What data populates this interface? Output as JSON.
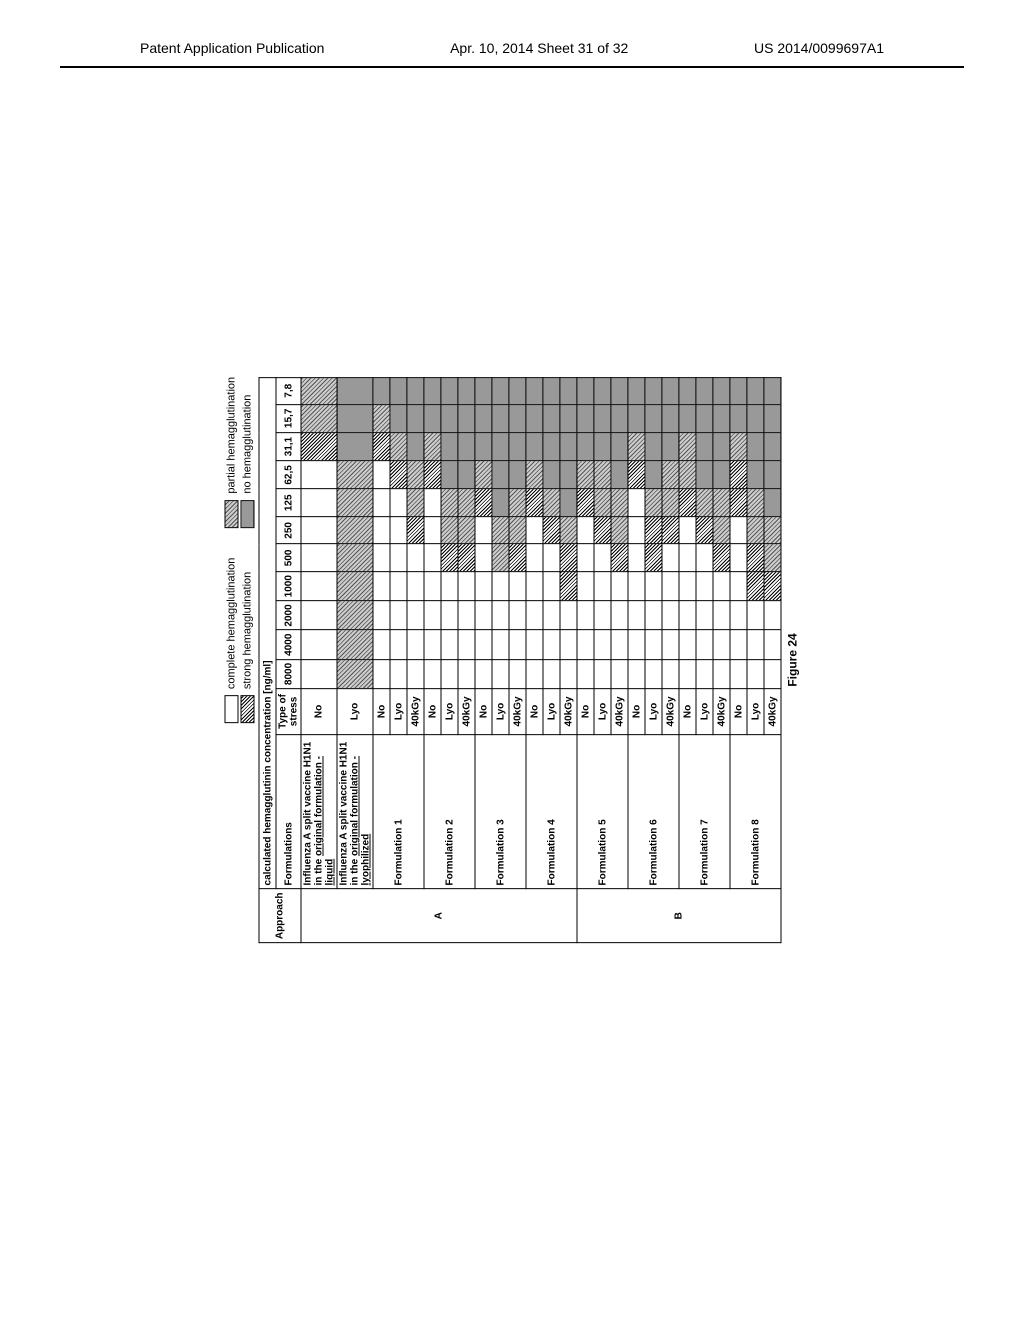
{
  "header": {
    "left": "Patent Application Publication",
    "center": "Apr. 10, 2014  Sheet 31 of 32",
    "right": "US 2014/0099697A1"
  },
  "legend": {
    "complete": "complete hemagglutination",
    "strong": "strong hemagglutination",
    "partial": "partial hemagglutination",
    "none": "no hemagglutination"
  },
  "patterns": {
    "complete": {
      "bg": "#ffffff",
      "css": ""
    },
    "strong": {
      "bg": "repeating-linear-gradient(45deg,#000 0 1px,#fff 1px 2.5px)"
    },
    "partial": {
      "bg": "repeating-linear-gradient(45deg,#555 0 1px,#ccc 1px 3px)"
    },
    "none": {
      "bg": "repeating-linear-gradient(0deg,#777 0 1px,#bbb 1px 2px)"
    }
  },
  "table": {
    "title": "calculated hemagglutinin concentration [ng/ml]",
    "col_approach": "Approach",
    "col_formulations": "Formulations",
    "col_stress": "Type of stress",
    "concentrations": [
      "8000",
      "4000",
      "2000",
      "1000",
      "500",
      "250",
      "125",
      "62,5",
      "31,1",
      "15,7",
      "7,8"
    ],
    "groups": [
      {
        "approach": "A",
        "rows": [
          {
            "label_html": "Influenza A split vaccine H1N1 in the <span class='under'>original formulation - liquid</span>",
            "stress": "No",
            "cells": [
              "complete",
              "complete",
              "complete",
              "complete",
              "complete",
              "complete",
              "complete",
              "complete",
              "strong",
              "partial",
              "partial"
            ]
          },
          {
            "label_html": "Influenza A split vaccine H1N1 in the <span class='under'>original formulation - lyophilized</span>",
            "stress": "Lyo",
            "cells": [
              "partial",
              "partial",
              "partial",
              "partial",
              "partial",
              "partial",
              "partial",
              "partial",
              "none",
              "none",
              "none"
            ]
          },
          {
            "label": "Formulation 1",
            "rowspan": 3,
            "stress": "No",
            "cells": [
              "complete",
              "complete",
              "complete",
              "complete",
              "complete",
              "complete",
              "complete",
              "complete",
              "strong",
              "partial",
              "none"
            ]
          },
          {
            "stress": "Lyo",
            "cells": [
              "complete",
              "complete",
              "complete",
              "complete",
              "complete",
              "complete",
              "complete",
              "strong",
              "partial",
              "none",
              "none"
            ]
          },
          {
            "stress": "40kGy",
            "cells": [
              "complete",
              "complete",
              "complete",
              "complete",
              "complete",
              "strong",
              "partial",
              "partial",
              "none",
              "none",
              "none"
            ]
          },
          {
            "label": "Formulation 2",
            "rowspan": 3,
            "stress": "No",
            "cells": [
              "complete",
              "complete",
              "complete",
              "complete",
              "complete",
              "complete",
              "complete",
              "strong",
              "partial",
              "none",
              "none"
            ]
          },
          {
            "stress": "Lyo",
            "cells": [
              "complete",
              "complete",
              "complete",
              "complete",
              "strong",
              "partial",
              "partial",
              "none",
              "none",
              "none",
              "none"
            ]
          },
          {
            "stress": "40kGy",
            "cells": [
              "complete",
              "complete",
              "complete",
              "complete",
              "strong",
              "partial",
              "partial",
              "none",
              "none",
              "none",
              "none"
            ]
          },
          {
            "label": "Formulation 3",
            "rowspan": 3,
            "stress": "No",
            "cells": [
              "complete",
              "complete",
              "complete",
              "complete",
              "complete",
              "complete",
              "strong",
              "partial",
              "none",
              "none",
              "none"
            ]
          },
          {
            "stress": "Lyo",
            "cells": [
              "complete",
              "complete",
              "complete",
              "complete",
              "partial",
              "partial",
              "none",
              "none",
              "none",
              "none",
              "none"
            ]
          },
          {
            "stress": "40kGy",
            "cells": [
              "complete",
              "complete",
              "complete",
              "complete",
              "strong",
              "partial",
              "partial",
              "none",
              "none",
              "none",
              "none"
            ]
          },
          {
            "label": "Formulation 4",
            "rowspan": 3,
            "stress": "No",
            "cells": [
              "complete",
              "complete",
              "complete",
              "complete",
              "complete",
              "complete",
              "strong",
              "partial",
              "none",
              "none",
              "none"
            ]
          },
          {
            "stress": "Lyo",
            "cells": [
              "complete",
              "complete",
              "complete",
              "complete",
              "complete",
              "strong",
              "partial",
              "none",
              "none",
              "none",
              "none"
            ]
          },
          {
            "stress": "40kGy",
            "cells": [
              "complete",
              "complete",
              "complete",
              "strong",
              "strong",
              "partial",
              "none",
              "none",
              "none",
              "none",
              "none"
            ]
          }
        ]
      },
      {
        "approach": "B",
        "rows": [
          {
            "label": "Formulation 5",
            "rowspan": 3,
            "stress": "No",
            "cells": [
              "complete",
              "complete",
              "complete",
              "complete",
              "complete",
              "complete",
              "strong",
              "partial",
              "none",
              "none",
              "none"
            ]
          },
          {
            "stress": "Lyo",
            "cells": [
              "complete",
              "complete",
              "complete",
              "complete",
              "complete",
              "strong",
              "partial",
              "partial",
              "none",
              "none",
              "none"
            ]
          },
          {
            "stress": "40kGy",
            "cells": [
              "complete",
              "complete",
              "complete",
              "complete",
              "strong",
              "partial",
              "partial",
              "none",
              "none",
              "none",
              "none"
            ]
          },
          {
            "label": "Formulation 6",
            "rowspan": 3,
            "stress": "No",
            "cells": [
              "complete",
              "complete",
              "complete",
              "complete",
              "complete",
              "complete",
              "complete",
              "strong",
              "partial",
              "none",
              "none"
            ]
          },
          {
            "stress": "Lyo",
            "cells": [
              "complete",
              "complete",
              "complete",
              "complete",
              "strong",
              "strong",
              "partial",
              "none",
              "none",
              "none",
              "none"
            ]
          },
          {
            "stress": "40kGy",
            "cells": [
              "complete",
              "complete",
              "complete",
              "complete",
              "complete",
              "strong",
              "partial",
              "partial",
              "none",
              "none",
              "none"
            ]
          },
          {
            "label": "Formulation 7",
            "rowspan": 3,
            "stress": "No",
            "cells": [
              "complete",
              "complete",
              "complete",
              "complete",
              "complete",
              "complete",
              "strong",
              "partial",
              "partial",
              "none",
              "none"
            ]
          },
          {
            "stress": "Lyo",
            "cells": [
              "complete",
              "complete",
              "complete",
              "complete",
              "complete",
              "strong",
              "partial",
              "none",
              "none",
              "none",
              "none"
            ]
          },
          {
            "stress": "40kGy",
            "cells": [
              "complete",
              "complete",
              "complete",
              "complete",
              "strong",
              "partial",
              "partial",
              "none",
              "none",
              "none",
              "none"
            ]
          },
          {
            "label": "Formulation 8",
            "rowspan": 3,
            "stress": "No",
            "cells": [
              "complete",
              "complete",
              "complete",
              "complete",
              "complete",
              "complete",
              "strong",
              "strong",
              "partial",
              "none",
              "none"
            ]
          },
          {
            "stress": "Lyo",
            "cells": [
              "complete",
              "complete",
              "complete",
              "strong",
              "strong",
              "partial",
              "partial",
              "none",
              "none",
              "none",
              "none"
            ]
          },
          {
            "stress": "40kGy",
            "cells": [
              "complete",
              "complete",
              "complete",
              "strong",
              "partial",
              "partial",
              "none",
              "none",
              "none",
              "none",
              "none"
            ]
          }
        ]
      }
    ]
  },
  "caption": "Figure 24"
}
